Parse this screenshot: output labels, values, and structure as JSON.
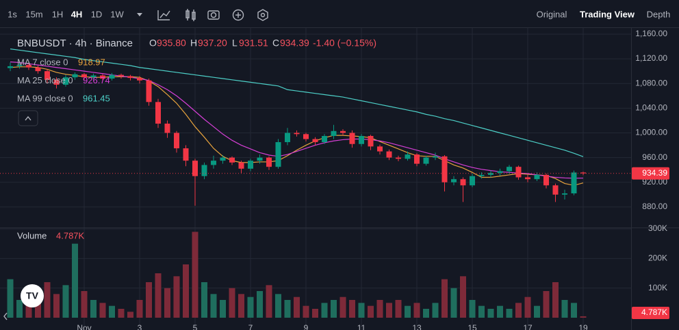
{
  "toolbar": {
    "intervals": [
      "1s",
      "15m",
      "1H",
      "4H",
      "1D",
      "1W"
    ],
    "views": [
      "Original",
      "Trading View",
      "Depth"
    ]
  },
  "chart_data": [
    {
      "type": "candlestick",
      "title": "BNBUSDT · 4h · Binance",
      "ohlc_legend": [
        {
          "label": "O",
          "value": "935.80"
        },
        {
          "label": "H",
          "value": "937.20"
        },
        {
          "label": "L",
          "value": "931.51"
        },
        {
          "label": "C",
          "value": "934.39"
        }
      ],
      "change": "-1.40 (−0.15%)",
      "categories": [
        null,
        null,
        null,
        null,
        null,
        null,
        null,
        null,
        "Nov",
        null,
        null,
        null,
        null,
        null,
        "3",
        null,
        null,
        null,
        null,
        null,
        "5",
        null,
        null,
        null,
        null,
        null,
        "7",
        null,
        null,
        null,
        null,
        null,
        "9",
        null,
        null,
        null,
        null,
        null,
        "11",
        null,
        null,
        null,
        null,
        null,
        "13",
        null,
        null,
        null,
        null,
        null,
        "15",
        null,
        null,
        null,
        null,
        null,
        "17",
        null,
        null,
        null,
        null,
        null,
        "19"
      ],
      "open": [
        1105,
        1108,
        1110,
        1106,
        1100,
        1086,
        1078,
        1090,
        1095,
        1090,
        1093,
        1088,
        1094,
        1092,
        1089,
        1085,
        1050,
        1015,
        1000,
        975,
        955,
        930,
        948,
        955,
        960,
        952,
        942,
        955,
        960,
        945,
        985,
        1000,
        998,
        990,
        985,
        995,
        1003,
        1000,
        982,
        995,
        978,
        970,
        960,
        958,
        965,
        950,
        960,
        962,
        920,
        925,
        915,
        930,
        932,
        935,
        938,
        945,
        928,
        925,
        932,
        915,
        900,
        902,
        935.8
      ],
      "high": [
        1114,
        1113,
        1112,
        1109,
        1103,
        1090,
        1094,
        1098,
        1097,
        1096,
        1095,
        1097,
        1096,
        1094,
        1092,
        1088,
        1055,
        1020,
        1003,
        980,
        958,
        952,
        963,
        964,
        962,
        955,
        958,
        965,
        962,
        990,
        1008,
        1004,
        1000,
        993,
        998,
        1013,
        1006,
        1004,
        998,
        997,
        981,
        973,
        963,
        970,
        967,
        963,
        968,
        964,
        930,
        928,
        934,
        936,
        939,
        942,
        948,
        947,
        932,
        936,
        934,
        918,
        908,
        939,
        937.2
      ],
      "low": [
        1100,
        1104,
        1102,
        1096,
        1080,
        1072,
        1075,
        1086,
        1086,
        1087,
        1084,
        1085,
        1088,
        1085,
        1080,
        1044,
        1008,
        992,
        968,
        946,
        882,
        925,
        942,
        950,
        948,
        935,
        938,
        950,
        940,
        942,
        980,
        994,
        986,
        980,
        982,
        990,
        996,
        976,
        978,
        972,
        965,
        956,
        954,
        955,
        946,
        947,
        956,
        905,
        915,
        888,
        912,
        926,
        928,
        931,
        934,
        924,
        920,
        922,
        910,
        888,
        892,
        899,
        931.51
      ],
      "close": [
        1108,
        1110,
        1106,
        1100,
        1086,
        1078,
        1090,
        1095,
        1090,
        1093,
        1088,
        1094,
        1092,
        1089,
        1085,
        1050,
        1015,
        1000,
        975,
        955,
        930,
        948,
        955,
        960,
        952,
        942,
        955,
        960,
        945,
        985,
        1000,
        998,
        990,
        985,
        995,
        1003,
        1000,
        982,
        995,
        978,
        970,
        960,
        958,
        965,
        950,
        960,
        962,
        920,
        925,
        915,
        930,
        932,
        935,
        938,
        945,
        928,
        925,
        932,
        915,
        900,
        902,
        935.8,
        934.39
      ],
      "series": [
        {
          "name": "MA 7 close 0",
          "color": "#e8a33d",
          "values": [
            1106,
            1107,
            1107,
            1106,
            1103,
            1098,
            1095,
            1093,
            1091,
            1090,
            1090,
            1091,
            1091,
            1091,
            1090,
            1084,
            1075,
            1062,
            1048,
            1030,
            1010,
            993,
            975,
            962,
            955,
            952,
            952,
            953,
            953,
            955,
            963,
            972,
            980,
            987,
            992,
            996,
            996,
            995,
            994,
            992,
            986,
            980,
            974,
            968,
            963,
            962,
            962,
            955,
            948,
            943,
            936,
            928,
            928,
            930,
            932,
            934,
            933,
            932,
            931,
            926,
            918,
            915,
            918.97
          ]
        },
        {
          "name": "MA 25 close 0",
          "color": "#d63fd6",
          "values": [
            1115,
            1114,
            1112,
            1110,
            1108,
            1106,
            1104,
            1102,
            1100,
            1098,
            1096,
            1094,
            1092,
            1090,
            1088,
            1085,
            1078,
            1070,
            1060,
            1048,
            1035,
            1022,
            1010,
            998,
            988,
            980,
            974,
            968,
            964,
            962,
            965,
            970,
            975,
            980,
            984,
            987,
            989,
            990,
            990,
            989,
            987,
            984,
            980,
            976,
            972,
            968,
            964,
            958,
            953,
            948,
            944,
            941,
            939,
            937,
            936,
            935,
            934,
            932,
            930,
            928,
            927,
            926.5,
            926.74
          ]
        },
        {
          "name": "MA 99 close 0",
          "color": "#4dd0c8",
          "values": [
            1136,
            1134,
            1132,
            1130,
            1128,
            1126,
            1124,
            1122,
            1119,
            1117,
            1115,
            1113,
            1111,
            1109,
            1106,
            1104,
            1102,
            1100,
            1098,
            1096,
            1094,
            1092,
            1090,
            1088,
            1086,
            1084,
            1082,
            1080,
            1078,
            1076,
            1070,
            1068,
            1066,
            1064,
            1062,
            1060,
            1058,
            1055,
            1052,
            1049,
            1046,
            1043,
            1040,
            1037,
            1034,
            1030,
            1027,
            1023,
            1020,
            1016,
            1012,
            1008,
            1004,
            1000,
            996,
            992,
            988,
            984,
            980,
            976,
            972,
            967,
            961.45
          ]
        }
      ],
      "ylim": [
        850,
        1171
      ],
      "yticks": [
        {
          "value": 1160,
          "label": "1,160.00"
        },
        {
          "value": 1120,
          "label": "1,120.00"
        },
        {
          "value": 1080,
          "label": "1,080.00"
        },
        {
          "value": 1040,
          "label": "1,040.00"
        },
        {
          "value": 1000,
          "label": "1,000.00"
        },
        {
          "value": 960,
          "label": "960.00"
        },
        {
          "value": 920,
          "label": "920.00"
        },
        {
          "value": 880,
          "label": "880.00"
        }
      ],
      "grid": true,
      "up_color": "#089981",
      "down_color": "#f23645"
    },
    {
      "type": "bar",
      "title": "Volume",
      "values": [
        130000,
        60000,
        90000,
        60000,
        120000,
        80000,
        110000,
        250000,
        90000,
        60000,
        50000,
        40000,
        30000,
        20000,
        60000,
        120000,
        150000,
        100000,
        140000,
        180000,
        290000,
        120000,
        80000,
        60000,
        100000,
        80000,
        70000,
        90000,
        110000,
        80000,
        60000,
        70000,
        40000,
        30000,
        50000,
        60000,
        70000,
        60000,
        50000,
        40000,
        60000,
        50000,
        60000,
        40000,
        50000,
        30000,
        50000,
        130000,
        100000,
        140000,
        60000,
        40000,
        30000,
        40000,
        30000,
        50000,
        70000,
        40000,
        90000,
        120000,
        60000,
        50000,
        4787
      ],
      "value_labels": [
        null,
        null,
        null,
        null,
        null,
        null,
        null,
        null,
        null,
        null,
        null,
        null,
        null,
        null,
        null,
        null,
        null,
        null,
        null,
        null,
        null,
        null,
        null,
        null,
        null,
        null,
        null,
        null,
        null,
        null,
        null,
        null,
        null,
        null,
        null,
        null,
        null,
        null,
        null,
        null,
        null,
        null,
        null,
        null,
        null,
        null,
        null,
        null,
        null,
        null,
        null,
        null,
        null,
        null,
        null,
        null,
        null,
        null,
        null,
        null,
        null,
        null,
        "4.787K"
      ],
      "ylim": [
        0,
        300000
      ],
      "yticks": [
        {
          "value": 300000,
          "label": "300K"
        },
        {
          "value": 200000,
          "label": "200K"
        },
        {
          "value": 100000,
          "label": "100K"
        }
      ],
      "grid": true,
      "up_color": "#1f6e5e",
      "down_color": "#7e2a39"
    }
  ]
}
